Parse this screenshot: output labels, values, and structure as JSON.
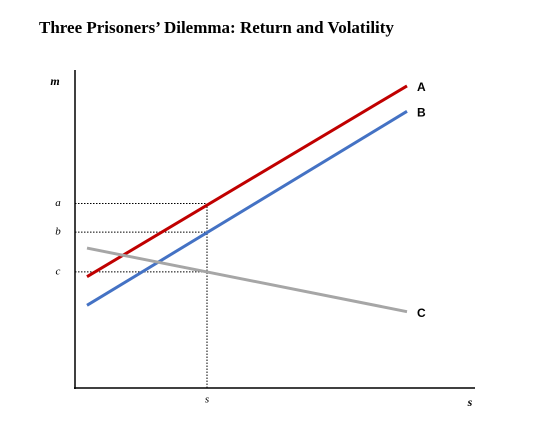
{
  "chart_data": {
    "type": "line",
    "title": "Three Prisoners’ Dilemma: Return and Volatility",
    "x_label": "s",
    "y_label": "m",
    "x": [
      3,
      83
    ],
    "series": [
      {
        "name": "A",
        "color": "#c00000",
        "values": [
          35,
          95
        ]
      },
      {
        "name": "B",
        "color": "#4472c4",
        "values": [
          26,
          87
        ]
      },
      {
        "name": "C",
        "color": "#a6a6a6",
        "values": [
          44,
          24
        ]
      }
    ],
    "xlim": [
      0,
      100
    ],
    "ylim": [
      0,
      100
    ],
    "xticks": [
      {
        "value": 33,
        "label": "s"
      }
    ],
    "yticks": [
      {
        "value": 58,
        "label": "a"
      },
      {
        "value": 49,
        "label": "b"
      },
      {
        "value": 36.5,
        "label": "c"
      }
    ],
    "grid": false
  }
}
